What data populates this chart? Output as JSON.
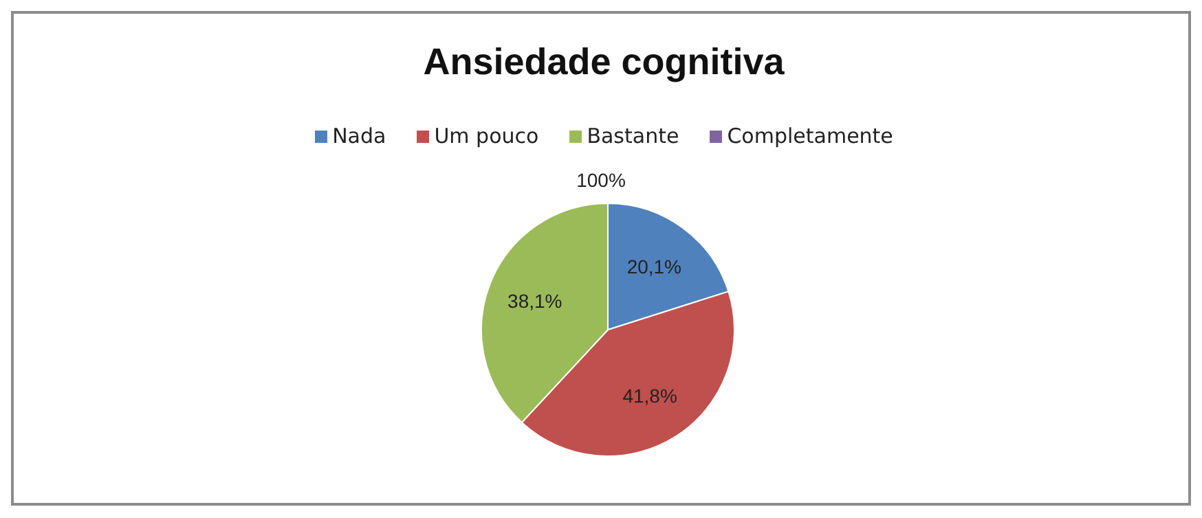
{
  "chart_data": {
    "type": "pie",
    "title": "Ansiedade cognitiva",
    "categories": [
      "Nada",
      "Um pouco",
      "Bastante",
      "Completamente"
    ],
    "values": [
      20.1,
      41.8,
      38.1,
      0
    ],
    "colors": [
      "#4f81bd",
      "#c0504d",
      "#9bbb59",
      "#8064a2"
    ],
    "value_labels": [
      "20,1%",
      "41,8%",
      "38,1%",
      null
    ],
    "annotations": [
      "100%"
    ],
    "legend": "top"
  }
}
